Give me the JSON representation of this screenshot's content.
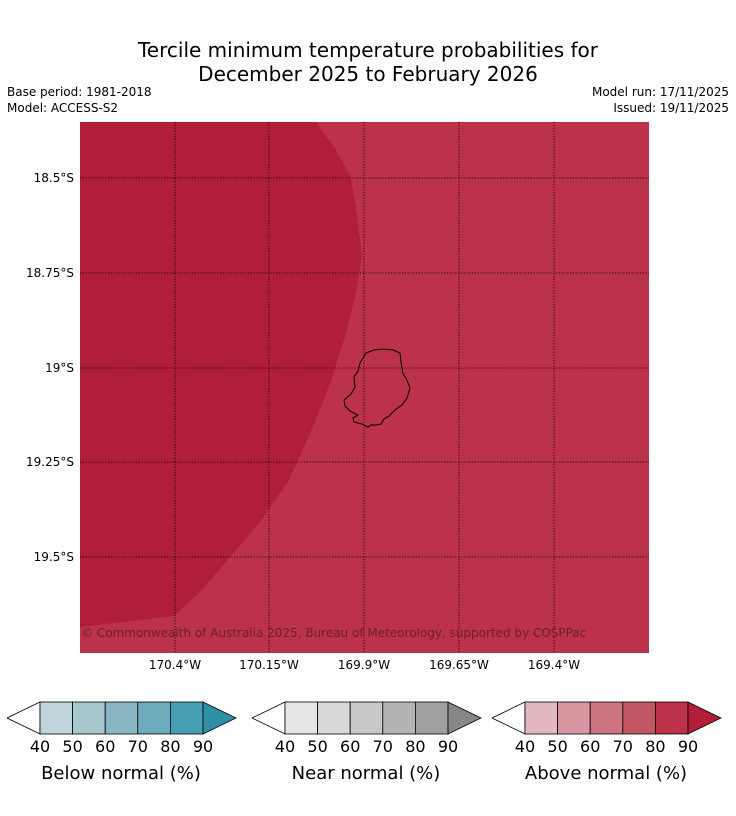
{
  "title_line1": "Tercile minimum temperature probabilities for",
  "title_line2": "December 2025 to February 2026",
  "base_period": "Base period: 1981-2018",
  "model": "Model: ACCESS-S2",
  "model_run": "Model run: 17/11/2025",
  "issued": "Issued: 19/11/2025",
  "credit": "© Commonwealth of Australia 2025, Bureau of Meteorology, supported by COSPPac",
  "lat_labels": [
    "18.5°S",
    "18.75°S",
    "19°S",
    "19.25°S",
    "19.5°S"
  ],
  "lon_labels": [
    "170.4°W",
    "170.15°W",
    "169.9°W",
    "169.65°W",
    "169.4°W"
  ],
  "map_colors": {
    "above_80_90": "#bc3349",
    "above_90_plus": "#b01e3a"
  },
  "colorbars": [
    {
      "label": "Below normal (%)",
      "ticks": [
        "40",
        "50",
        "60",
        "70",
        "80",
        "90"
      ],
      "colors": [
        "#bfd4db",
        "#a6c7cd",
        "#8ab6c3",
        "#6cacbd",
        "#469fb2",
        "#2f8fa5"
      ]
    },
    {
      "label": "Near normal (%)",
      "ticks": [
        "40",
        "50",
        "60",
        "70",
        "80",
        "90"
      ],
      "colors": [
        "#e6e6e6",
        "#d8d8d8",
        "#c8c8c8",
        "#b4b4b4",
        "#a0a0a0",
        "#878787"
      ]
    },
    {
      "label": "Above normal (%)",
      "ticks": [
        "40",
        "50",
        "60",
        "70",
        "80",
        "90"
      ],
      "colors": [
        "#e2b8bf",
        "#d7969f",
        "#cc7580",
        "#c15663",
        "#bc3349",
        "#b01e3a"
      ]
    }
  ]
}
